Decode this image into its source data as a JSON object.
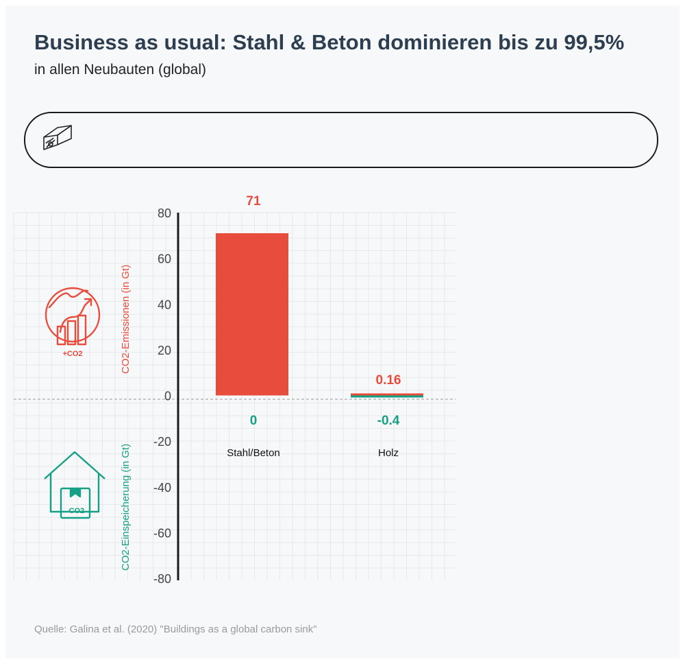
{
  "header": {
    "title": "Business as usual: Stahl & Beton dominieren bis zu 99,5%",
    "subtitle": "in allen Neubauten (global)"
  },
  "slider": {
    "icon": "wood-beam-icon"
  },
  "icons": {
    "emission": {
      "name": "globe-rising-chart-icon",
      "label": "+CO2",
      "color": "#e74c3c"
    },
    "storage": {
      "name": "house-storage-icon",
      "label": "-CO2",
      "color": "#16a085"
    }
  },
  "chart_data": {
    "type": "bar",
    "categories": [
      "Stahl/Beton",
      "Holz"
    ],
    "series": [
      {
        "values": [
          71,
          0.16
        ],
        "color": "#e74c3c"
      },
      {
        "values": [
          0,
          -0.4
        ],
        "color": "#16a085"
      }
    ],
    "ylabel_positive": "CO2-Emissionen (in Gt)",
    "ylabel_negative": "CO2-Einspeicherung (in Gt)",
    "ylim": [
      -80,
      80
    ],
    "yticks": [
      80,
      60,
      40,
      20,
      0,
      -20,
      -40,
      -60,
      -80
    ],
    "grid": true
  },
  "footer": {
    "source": "Quelle: Galina et al. (2020) \"Buildings as a global carbon sink\""
  }
}
